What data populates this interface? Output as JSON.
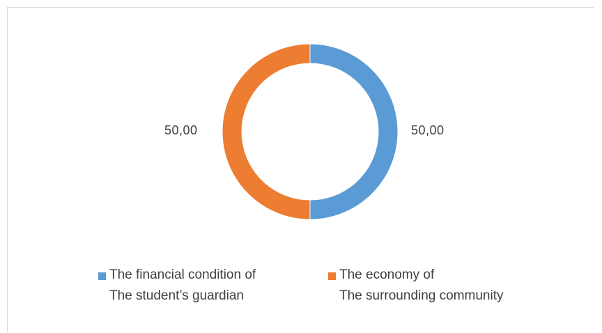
{
  "chart_data": {
    "type": "donut",
    "slices": [
      {
        "label_line1": "The financial condition of",
        "label_line2": "The student’s guardian",
        "value": 50.0,
        "display": "50,00",
        "color": "#5b9bd5"
      },
      {
        "label_line1": "The economy of",
        "label_line2": "The surrounding community",
        "value": 50.0,
        "display": "50,00",
        "color": "#ed7d31"
      }
    ],
    "start_angle_deg": 0,
    "direction": "clockwise",
    "legend_position": "bottom",
    "title": ""
  }
}
